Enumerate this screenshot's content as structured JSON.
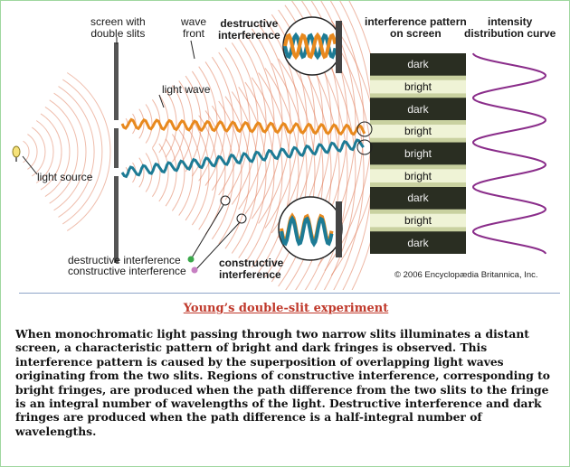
{
  "figure": {
    "labels": {
      "screen_double_slits": [
        "screen with",
        "double slits"
      ],
      "wave_front": [
        "wave",
        "front"
      ],
      "destructive_interference_top": [
        "destructive",
        "interference"
      ],
      "interference_pattern": [
        "interference pattern",
        "on screen"
      ],
      "intensity_curve": [
        "intensity",
        "distribution curve"
      ],
      "light_wave": "light wave",
      "light_source": "light source",
      "legend_destructive": "destructive interference",
      "legend_constructive": "constructive interference",
      "constructive_interference_bottom": [
        "constructive",
        "interference"
      ]
    },
    "fringes": [
      "dark",
      "bright",
      "dark",
      "bright",
      "bright",
      "bright",
      "dark",
      "bright",
      "dark"
    ],
    "legend_colors": {
      "destructive": "#3aa84a",
      "constructive": "#c77fc2"
    },
    "colors": {
      "orange_wave": "#e8891e",
      "teal_wave": "#1d7b95",
      "intensity_curve": "#8a2d8a",
      "wavefronts": "#e07b5a"
    },
    "copyright": "© 2006 Encyclopædia Britannica, Inc."
  },
  "caption": {
    "title": "Young’s double-slit experiment",
    "body": "When monochromatic light passing through two narrow slits illuminates a distant screen, a characteristic pattern of bright and dark fringes is observed. This interference pattern is caused by the superposition of overlapping light waves originating from the two slits. Regions of constructive interference, corresponding to bright fringes, are produced when the path difference from the two slits to the fringe is an integral number of wavelengths of the light. Destructive interference and dark fringes are produced when the path difference is a half-integral number of wavelengths."
  }
}
